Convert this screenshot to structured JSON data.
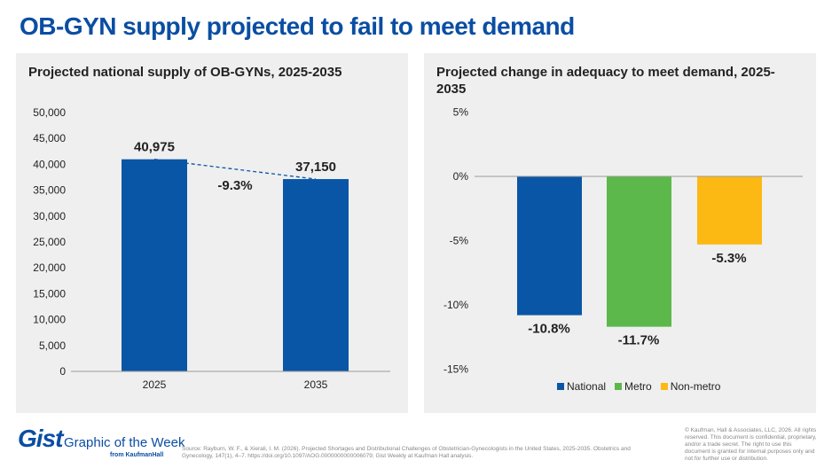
{
  "title": "OB-GYN supply projected to fail to meet demand",
  "chart_data": [
    {
      "type": "bar",
      "title": "Projected national supply of OB-GYNs, 2025-2035",
      "categories": [
        "2025",
        "2035"
      ],
      "values": [
        40975,
        37150
      ],
      "value_labels": [
        "40,975",
        "37,150"
      ],
      "annotation": "-9.3%",
      "ylim": [
        0,
        50000
      ],
      "yticks": [
        0,
        5000,
        10000,
        15000,
        20000,
        25000,
        30000,
        35000,
        40000,
        45000,
        50000
      ],
      "ytick_labels": [
        "0",
        "5,000",
        "10,000",
        "15,000",
        "20,000",
        "25,000",
        "30,000",
        "35,000",
        "40,000",
        "45,000",
        "50,000"
      ],
      "color": "#0a56a6"
    },
    {
      "type": "bar",
      "title": "Projected change in adequacy to meet demand, 2025-2035",
      "categories": [
        "National",
        "Metro",
        "Non-metro"
      ],
      "values": [
        -10.8,
        -11.7,
        -5.3
      ],
      "value_labels": [
        "-10.8%",
        "-11.7%",
        "-5.3%"
      ],
      "colors": [
        "#0a56a6",
        "#5cb84a",
        "#fdb913"
      ],
      "ylim": [
        -15,
        5
      ],
      "yticks": [
        5,
        0,
        -5,
        -10,
        -15
      ],
      "ytick_labels": [
        "5%",
        "0%",
        "-5%",
        "-10%",
        "-15%"
      ],
      "legend": "bottom"
    }
  ],
  "footer": {
    "brand": "Gist",
    "subtitle": "Graphic of the Week",
    "from": "from KaufmanHall",
    "source": "Source: Rayburn, W. F., & Xierali, I. M. (2026). Projected Shortages and Distributional Challenges of Obstetrician-Gynecologists in the United States, 2025-2035. Obstetrics and Gynecology, 147(1), 4–7. https://doi.org/10.1097/AOG.0000000000006079; Gist Weekly at Kaufman Hall analysis.",
    "copyright": "© Kaufman, Hall & Associates, LLC, 2026. All rights reserved. This document is confidential, proprietary, and/or a trade secret. The right to use this document is granted for internal purposes only and not for further use or distribution."
  }
}
